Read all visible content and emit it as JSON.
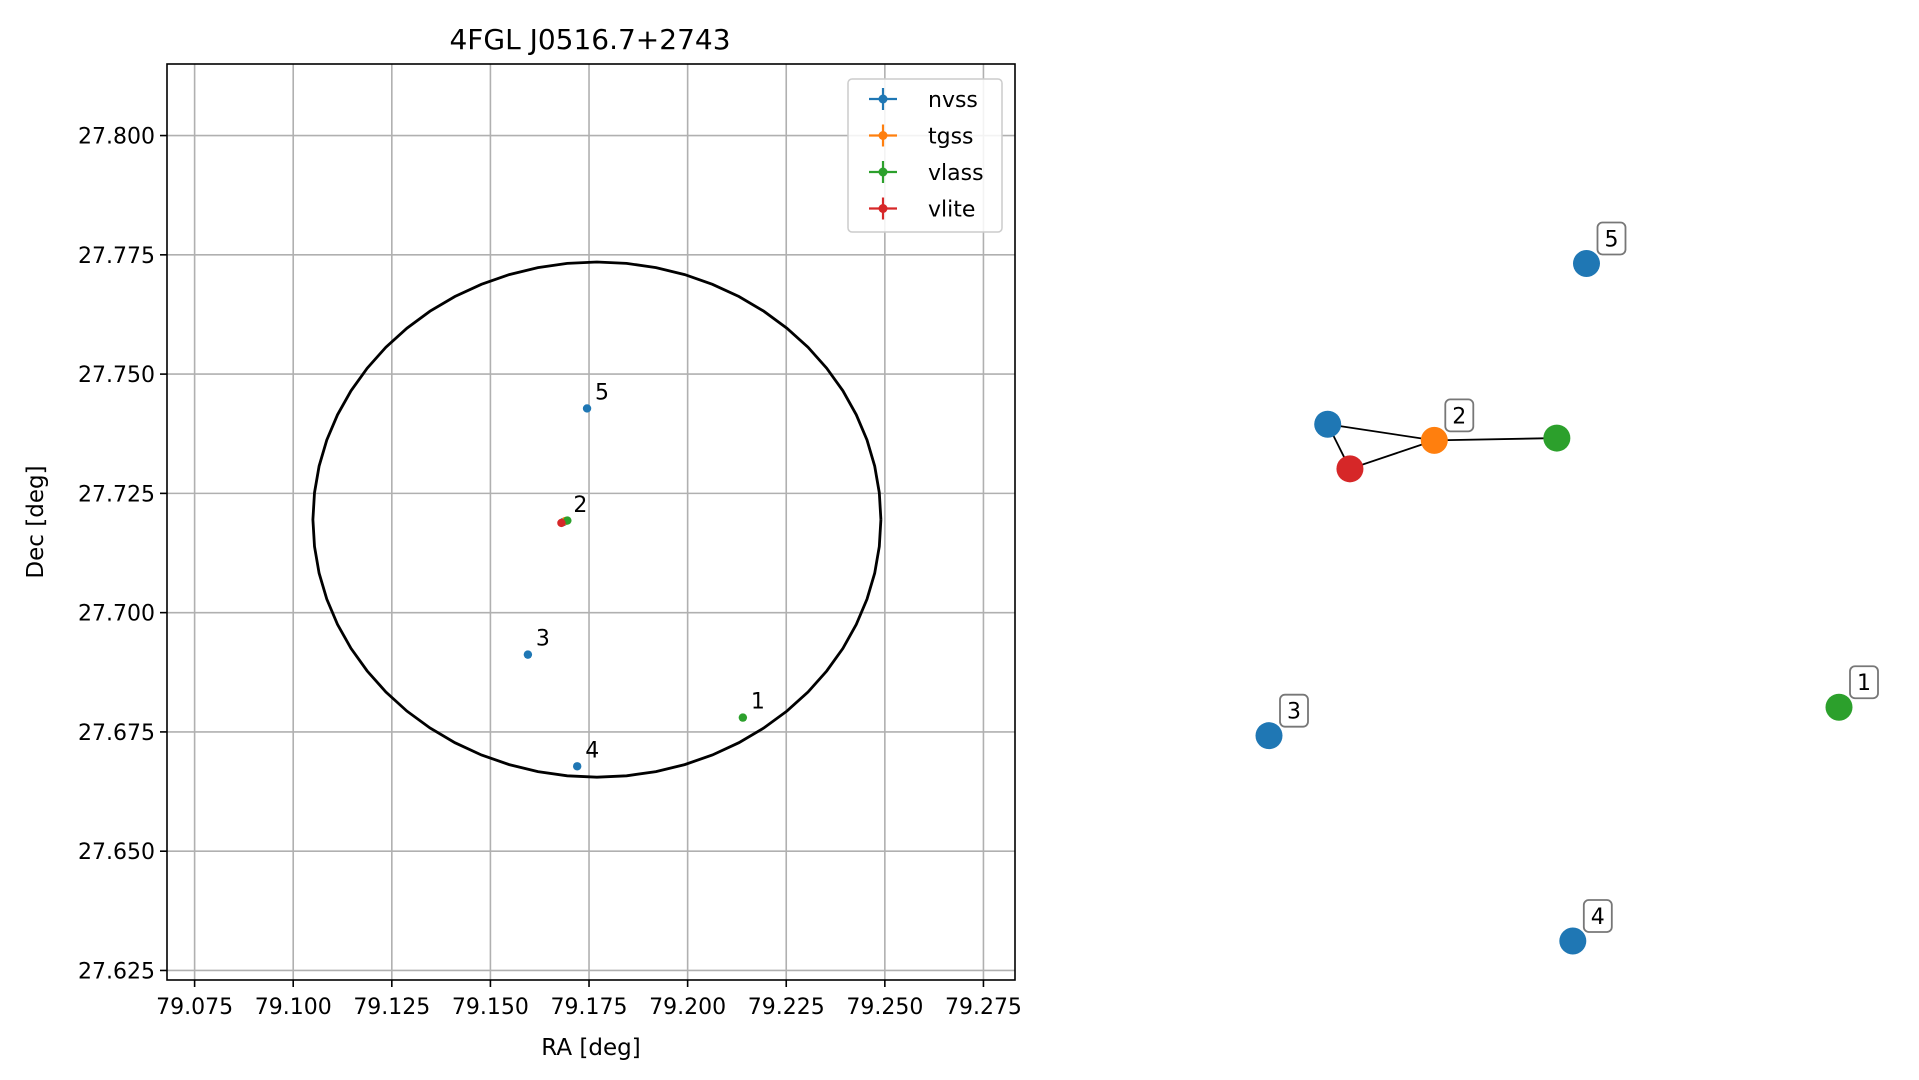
{
  "chart_data": [
    {
      "type": "scatter",
      "title": "4FGL J0516.7+2743",
      "xlabel": "RA [deg]",
      "ylabel": "Dec [deg]",
      "xlim": [
        79.068,
        79.283
      ],
      "ylim": [
        27.623,
        27.815
      ],
      "xticks": [
        "79.075",
        "79.100",
        "79.125",
        "79.150",
        "79.175",
        "79.200",
        "79.225",
        "79.250",
        "79.275"
      ],
      "yticks": [
        "27.625",
        "27.650",
        "27.675",
        "27.700",
        "27.725",
        "27.750",
        "27.775",
        "27.800"
      ],
      "grid": true,
      "legend_position": "top-right",
      "series": [
        {
          "name": "nvss",
          "color": "#1f77b4",
          "points": [
            {
              "x": 79.1745,
              "y": 27.7428
            },
            {
              "x": 79.1595,
              "y": 27.6912
            },
            {
              "x": 79.172,
              "y": 27.6678
            },
            {
              "x": 79.1685,
              "y": 27.719
            }
          ]
        },
        {
          "name": "tgss",
          "color": "#ff7f0e",
          "points": [
            {
              "x": 79.169,
              "y": 27.7192
            }
          ]
        },
        {
          "name": "vlass",
          "color": "#2ca02c",
          "points": [
            {
              "x": 79.214,
              "y": 27.678
            },
            {
              "x": 79.1695,
              "y": 27.7193
            }
          ]
        },
        {
          "name": "vlite",
          "color": "#d62728",
          "points": [
            {
              "x": 79.168,
              "y": 27.7188
            }
          ]
        }
      ],
      "annotations": [
        {
          "text": "5",
          "x": 79.1745,
          "y": 27.7428
        },
        {
          "text": "2",
          "x": 79.169,
          "y": 27.7192
        },
        {
          "text": "3",
          "x": 79.1595,
          "y": 27.6912
        },
        {
          "text": "1",
          "x": 79.214,
          "y": 27.678
        },
        {
          "text": "4",
          "x": 79.172,
          "y": 27.6678
        }
      ],
      "circle": {
        "center_x": 79.177,
        "center_y": 27.7195,
        "radius_x": 0.072,
        "radius_y": 0.054,
        "color": "#000000"
      }
    },
    {
      "type": "network",
      "nodes": [
        {
          "id": "n5",
          "color": "#1f77b4",
          "label": "5",
          "x": 0.557,
          "y": 0.881
        },
        {
          "id": "nvss2",
          "color": "#1f77b4",
          "label": "",
          "x": 0.103,
          "y": 0.672
        },
        {
          "id": "tgss2",
          "color": "#ff7f0e",
          "label": "2",
          "x": 0.29,
          "y": 0.651
        },
        {
          "id": "vlass2",
          "color": "#2ca02c",
          "label": "",
          "x": 0.505,
          "y": 0.654
        },
        {
          "id": "vlite2",
          "color": "#d62728",
          "label": "",
          "x": 0.142,
          "y": 0.614
        },
        {
          "id": "n3",
          "color": "#1f77b4",
          "label": "3",
          "x": 0.0,
          "y": 0.267
        },
        {
          "id": "n1",
          "color": "#2ca02c",
          "label": "1",
          "x": 1.0,
          "y": 0.304
        },
        {
          "id": "n4",
          "color": "#1f77b4",
          "label": "4",
          "x": 0.533,
          "y": 0.0
        }
      ],
      "edges": [
        [
          "nvss2",
          "tgss2"
        ],
        [
          "nvss2",
          "vlite2"
        ],
        [
          "vlite2",
          "tgss2"
        ],
        [
          "tgss2",
          "vlass2"
        ]
      ]
    }
  ]
}
